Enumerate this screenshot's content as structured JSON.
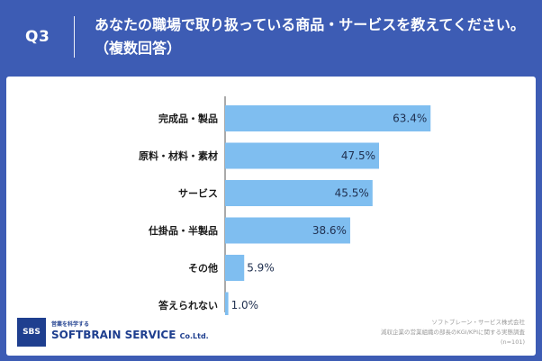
{
  "header": {
    "q_label": "Q3",
    "question": "あなたの職場で取り扱っている商品・サービスを教えてください。（複数回答）"
  },
  "chart_data": {
    "type": "bar",
    "orientation": "horizontal",
    "categories": [
      "完成品・製品",
      "原料・材料・素材",
      "サービス",
      "仕掛品・半製品",
      "その他",
      "答えられない"
    ],
    "values": [
      63.4,
      47.5,
      45.5,
      38.6,
      5.9,
      1.0
    ],
    "value_labels": [
      "63.4%",
      "47.5%",
      "45.5%",
      "38.6%",
      "5.9%",
      "1.0%"
    ],
    "xlim": [
      0,
      100
    ],
    "bar_color": "#7fbef0",
    "grid": false,
    "legend": "none"
  },
  "footer": {
    "logo_text": "SBS",
    "brand_sub": "営業を科学する",
    "brand_name": "SOFTBRAIN SERVICE",
    "brand_suffix": "Co.Ltd.",
    "source_line1": "ソフトブレーン・サービス株式会社",
    "source_line2": "減収企業の営業組織の部長のKGI/KPIに関する実態調査",
    "source_line3": "(n=101)"
  }
}
